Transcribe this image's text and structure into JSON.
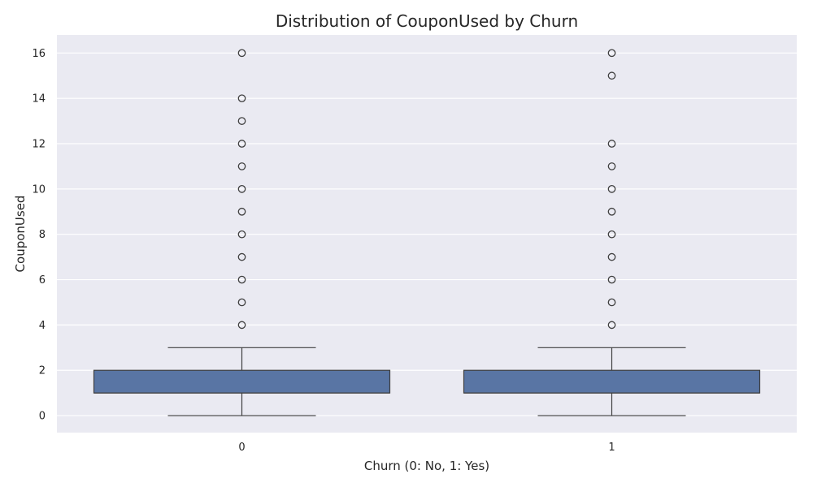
{
  "chart_data": {
    "type": "box",
    "title": "Distribution of CouponUsed by Churn",
    "xlabel": "Churn (0: No, 1: Yes)",
    "ylabel": "CouponUsed",
    "categories": [
      "0",
      "1"
    ],
    "ylim": [
      -0.75,
      16.8
    ],
    "yticks": [
      0,
      2,
      4,
      6,
      8,
      10,
      12,
      14,
      16
    ],
    "grid": true,
    "colors": {
      "plot_background": "#eaeaf2",
      "grid": "#ffffff",
      "box_fill": "#5975a4",
      "line": "#3f3f3f"
    },
    "boxes": [
      {
        "category": "0",
        "whisker_low": 0,
        "q1": 1,
        "median": 1,
        "q3": 2,
        "whisker_high": 3,
        "outliers": [
          4,
          5,
          6,
          7,
          8,
          9,
          10,
          11,
          12,
          13,
          14,
          16
        ]
      },
      {
        "category": "1",
        "whisker_low": 0,
        "q1": 1,
        "median": 1,
        "q3": 2,
        "whisker_high": 3,
        "outliers": [
          4,
          5,
          6,
          7,
          8,
          9,
          10,
          11,
          12,
          15,
          16
        ]
      }
    ]
  }
}
